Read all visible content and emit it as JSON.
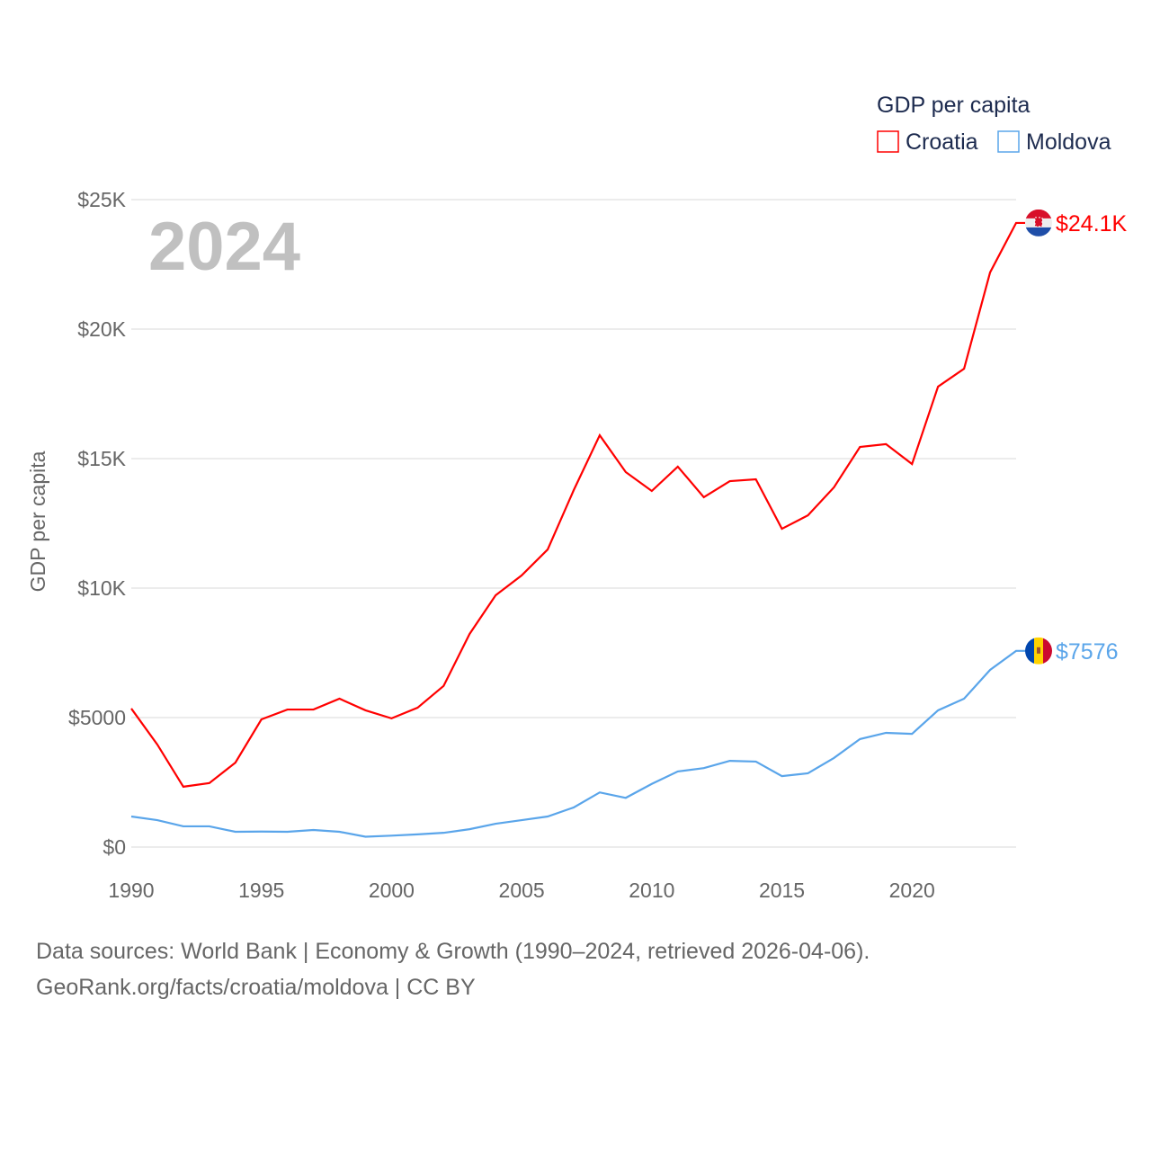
{
  "chart_data": {
    "type": "line",
    "ylabel": "GDP per capita",
    "year_label": "2024",
    "legend_title": "GDP per capita",
    "legend_position": "top-right",
    "ylim": [
      0,
      25000
    ],
    "xlim": [
      1990,
      2024
    ],
    "yticks": [
      0,
      5000,
      10000,
      15000,
      20000,
      25000
    ],
    "ytick_labels": [
      "$0",
      "$5000",
      "$10K",
      "$15K",
      "$20K",
      "$25K"
    ],
    "xticks": [
      1990,
      1995,
      2000,
      2005,
      2010,
      2015,
      2020
    ],
    "xtick_labels": [
      "1990",
      "1995",
      "2000",
      "2005",
      "2010",
      "2015",
      "2020"
    ],
    "grid": true,
    "x": [
      1990,
      1991,
      1992,
      1993,
      1994,
      1995,
      1996,
      1997,
      1998,
      1999,
      2000,
      2001,
      2002,
      2003,
      2004,
      2005,
      2006,
      2007,
      2008,
      2009,
      2010,
      2011,
      2012,
      2013,
      2014,
      2015,
      2016,
      2017,
      2018,
      2019,
      2020,
      2021,
      2022,
      2023,
      2024
    ],
    "series": [
      {
        "name": "Croatia",
        "color": "#ff0000",
        "end_label": "$24.1K",
        "values": [
          5350,
          3960,
          2330,
          2470,
          3260,
          4930,
          5310,
          5310,
          5730,
          5280,
          4970,
          5380,
          6220,
          8230,
          9720,
          10490,
          11490,
          13780,
          15900,
          14480,
          13750,
          14690,
          13510,
          14130,
          14200,
          12290,
          12810,
          13890,
          15450,
          15560,
          14790,
          17780,
          18470,
          22190,
          24100
        ]
      },
      {
        "name": "Moldova",
        "color": "#5aa5ea",
        "end_label": "$7576",
        "values": [
          1180,
          1040,
          800,
          800,
          590,
          600,
          590,
          660,
          590,
          400,
          440,
          490,
          550,
          690,
          900,
          1040,
          1180,
          1530,
          2110,
          1900,
          2440,
          2920,
          3050,
          3330,
          3300,
          2740,
          2850,
          3440,
          4170,
          4410,
          4370,
          5280,
          5730,
          6840,
          7576
        ]
      }
    ]
  },
  "footer": {
    "line1": "Data sources: World Bank | Economy & Growth (1990–2024, retrieved 2026-04-06).",
    "line2": "GeoRank.org/facts/croatia/moldova | CC BY"
  }
}
